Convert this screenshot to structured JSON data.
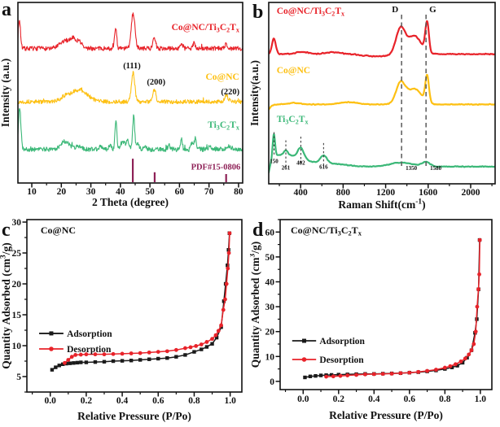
{
  "figure": {
    "background": "#ffffff",
    "colors": {
      "red": "#e8232a",
      "yellow": "#fdc013",
      "green": "#3cb878",
      "purple": "#8e2157",
      "ink": "#111111",
      "dash_gray": "#595959"
    }
  },
  "chart_data": [
    {
      "id": "a",
      "type": "line",
      "subtype": "xrd",
      "panel_label": "a",
      "xlabel": "2 Theta (degree)",
      "ylabel": "Intensity (a.u.)",
      "xlim": [
        5.3,
        81.4
      ],
      "xticks": [
        10,
        20,
        30,
        40,
        50,
        60,
        70,
        80
      ],
      "x_minor_step": 5,
      "yticks": [],
      "series": [
        {
          "name": "Ti_{3}C_{2}T_{x}",
          "color": "#3cb878",
          "baseline": 0.186,
          "noise": 0.013,
          "seed": 21,
          "peaks": [
            [
              5.9,
              0.23,
              0.6
            ],
            [
              21.3,
              0.046,
              2.0
            ],
            [
              25.8,
              0.02,
              1.5
            ],
            [
              33.5,
              0.015,
              1.0
            ],
            [
              36.5,
              0.025,
              0.6
            ],
            [
              38.5,
              0.165,
              0.45
            ],
            [
              40.8,
              0.045,
              0.9
            ],
            [
              42.5,
              0.05,
              0.7
            ],
            [
              44.5,
              0.185,
              0.5
            ],
            [
              46.0,
              0.03,
              0.6
            ],
            [
              48.3,
              0.02,
              0.7
            ],
            [
              56.5,
              0.02,
              0.6
            ],
            [
              60.7,
              0.058,
              0.4
            ],
            [
              64.3,
              0.04,
              0.5
            ],
            [
              65.4,
              0.065,
              0.5
            ],
            [
              70.2,
              0.015,
              0.5
            ],
            [
              77.0,
              0.02,
              0.8
            ]
          ],
          "label": {
            "text": "Ti_{3}C_{2}T_{x}",
            "fx": 0.985,
            "fy": 0.306,
            "anchor": "end"
          }
        },
        {
          "name": "Co@NC",
          "color": "#fdc013",
          "baseline": 0.45,
          "noise": 0.011,
          "seed": 13,
          "peaks": [
            [
              26.0,
              0.066,
              4.0
            ],
            [
              21.0,
              0.02,
              2.0
            ],
            [
              44.3,
              0.163,
              0.8
            ],
            [
              51.5,
              0.068,
              0.7
            ],
            [
              75.9,
              0.033,
              0.9
            ]
          ],
          "label": {
            "text": "Co@NC",
            "fx": 0.985,
            "fy": 0.572,
            "anchor": "end"
          }
        },
        {
          "name": "Co@NC/Ti_{3}C_{2}T_{x}",
          "color": "#e8232a",
          "baseline": 0.745,
          "noise": 0.012,
          "seed": 7,
          "peaks": [
            [
              5.8,
              0.155,
              0.55
            ],
            [
              21.5,
              0.042,
              2.6
            ],
            [
              24.2,
              0.045,
              1.5
            ],
            [
              26.3,
              0.032,
              1.1
            ],
            [
              38.4,
              0.118,
              0.5
            ],
            [
              44.3,
              0.195,
              0.9
            ],
            [
              51.5,
              0.06,
              0.65
            ],
            [
              60.8,
              0.03,
              0.5
            ],
            [
              65.0,
              0.032,
              0.55
            ],
            [
              75.8,
              0.024,
              0.6
            ]
          ],
          "label": {
            "text": "Co@NC/Ti_{3}C_{2}T_{x}",
            "fx": 0.985,
            "fy": 0.847,
            "anchor": "end"
          }
        }
      ],
      "reference": {
        "label": "PDF#15-0806",
        "color": "#8e2157",
        "bars": [
          [
            44.2,
            0.13
          ],
          [
            51.6,
            0.055
          ],
          [
            75.8,
            0.045
          ]
        ],
        "label_fx": 0.99,
        "label_fy": 0.075
      },
      "annotations": [
        {
          "text": "(111)",
          "x": 43.9,
          "fy": 0.635,
          "anchor": "middle"
        },
        {
          "text": "(200)",
          "x": 52.1,
          "fy": 0.545,
          "anchor": "middle"
        },
        {
          "text": "(220)",
          "x": 77.2,
          "fy": 0.49,
          "anchor": "middle"
        }
      ]
    },
    {
      "id": "b",
      "type": "line",
      "subtype": "raman",
      "panel_label": "b",
      "xlabel": "Raman Shift(cm^{-1})",
      "ylabel": "Intensity(a.u.)",
      "xlim": [
        100,
        2230
      ],
      "xticks": [
        400,
        800,
        1200,
        1600,
        2000
      ],
      "x_minor_step": 200,
      "yticks": [],
      "series": [
        {
          "name": "Ti_{3}C_{2}T_{x}",
          "color": "#3cb878",
          "baseline": 0.095,
          "noise": 0.0035,
          "seed": 9,
          "peaks": [
            [
              70,
              -0.13,
              45
            ],
            [
              230,
              0.065,
              280
            ],
            [
              148,
              0.125,
              16
            ],
            [
              261,
              0.025,
              26
            ],
            [
              402,
              0.06,
              40
            ],
            [
              616,
              0.045,
              45
            ],
            [
              730,
              0.012,
              160
            ],
            [
              1350,
              0.022,
              150
            ],
            [
              1580,
              0.025,
              50
            ]
          ],
          "label": {
            "text": "Ti_{3}C_{2}T_{x}",
            "fx": 0.035,
            "fy": 0.341,
            "anchor": "start"
          }
        },
        {
          "name": "Co@NC",
          "color": "#fdc013",
          "baseline": 0.438,
          "noise": 0.004,
          "seed": 5,
          "peaks": [
            [
              40,
              -0.08,
              60
            ],
            [
              850,
              0.012,
              120
            ],
            [
              340,
              0.008,
              80
            ],
            [
              1340,
              0.115,
              60
            ],
            [
              1470,
              0.085,
              95
            ],
            [
              1590,
              0.145,
              24
            ]
          ],
          "label": {
            "text": "Co@NC",
            "fx": 0.035,
            "fy": 0.61,
            "anchor": "start"
          }
        },
        {
          "name": "Co@NC/Ti_{3}C_{2}T_{x}",
          "color": "#e8232a",
          "baseline": 0.715,
          "noise": 0.0045,
          "seed": 3,
          "peaks": [
            [
              148,
              0.085,
              26
            ],
            [
              420,
              0.012,
              80
            ],
            [
              700,
              0.01,
              110
            ],
            [
              1100,
              -0.012,
              160
            ],
            [
              1340,
              0.14,
              60
            ],
            [
              1470,
              0.1,
              90
            ],
            [
              1590,
              0.165,
              24
            ]
          ],
          "label": {
            "text": "Co@NC/Ti_{3}C_{2}T_{x}",
            "fx": 0.035,
            "fy": 0.937,
            "anchor": "start"
          }
        }
      ],
      "dash_lines": [
        {
          "x": 1350,
          "band": "D",
          "value_label": "1350"
        },
        {
          "x": 1580,
          "band": "G",
          "value_label": "1580"
        }
      ],
      "marks": [
        {
          "x": 150,
          "label": "150",
          "dash": [
            0.285,
            0.155
          ],
          "label_fy": 0.115
        },
        {
          "x": 261,
          "label": "261",
          "dash": [
            0.24,
            0.09
          ],
          "label_fy": 0.078
        },
        {
          "x": 402,
          "label": "402",
          "dash": [
            0.26,
            0.105
          ],
          "label_fy": 0.105
        },
        {
          "x": 616,
          "label": "616",
          "dash": [
            0.225,
            0.095
          ],
          "label_fy": 0.082
        }
      ]
    },
    {
      "id": "c",
      "type": "scatter",
      "subtype": "isotherm",
      "panel_label": "c",
      "title": "Co@NC",
      "title_pos": {
        "fx": 0.064,
        "fy": 0.92
      },
      "xlabel": "Relative Pressure (P/Po)",
      "ylabel": "Quantity Adsorbed (cm^{3}/g)",
      "xlim": [
        -0.13,
        1.065
      ],
      "xticks": [
        0,
        0.2,
        0.4,
        0.6,
        0.8,
        1.0
      ],
      "xtick_labels": [
        "0.0",
        "0.2",
        "0.4",
        "0.6",
        "0.8",
        "1.0"
      ],
      "x_minor_step": 0.1,
      "ylim": [
        2.5,
        30.4
      ],
      "yticks": [
        5,
        10,
        15,
        20,
        25,
        30
      ],
      "y_minor_step": 2.5,
      "series": [
        {
          "name": "Adsorption",
          "color": "#1a1a1a",
          "marker": "square",
          "x": [
            0.01,
            0.03,
            0.05,
            0.07,
            0.09,
            0.11,
            0.13,
            0.15,
            0.17,
            0.2,
            0.25,
            0.3,
            0.35,
            0.4,
            0.45,
            0.5,
            0.55,
            0.6,
            0.65,
            0.7,
            0.75,
            0.8,
            0.84,
            0.87,
            0.9,
            0.925,
            0.95,
            0.965,
            0.975,
            0.985,
            0.991,
            0.996
          ],
          "y": [
            6.1,
            6.5,
            6.8,
            7.0,
            7.1,
            7.15,
            7.2,
            7.25,
            7.3,
            7.3,
            7.35,
            7.4,
            7.5,
            7.55,
            7.6,
            7.7,
            7.8,
            7.9,
            8.0,
            8.2,
            8.5,
            9.0,
            9.4,
            9.8,
            10.3,
            11.3,
            13.0,
            17.2,
            20.0,
            23.0,
            25.5,
            28.2
          ]
        },
        {
          "name": "Desorption",
          "color": "#e8232a",
          "marker": "circle",
          "x": [
            0.08,
            0.1,
            0.12,
            0.14,
            0.17,
            0.2,
            0.25,
            0.3,
            0.35,
            0.4,
            0.45,
            0.5,
            0.55,
            0.6,
            0.65,
            0.7,
            0.75,
            0.78,
            0.81,
            0.84,
            0.87,
            0.9,
            0.92,
            0.935,
            0.95,
            0.962,
            0.972,
            0.98,
            0.987,
            0.993,
            0.997
          ],
          "y": [
            7.2,
            7.7,
            8.2,
            8.5,
            8.55,
            8.6,
            8.6,
            8.6,
            8.65,
            8.7,
            8.75,
            8.8,
            8.9,
            9.0,
            9.1,
            9.3,
            9.6,
            9.75,
            9.95,
            10.2,
            10.6,
            11.1,
            11.7,
            12.4,
            13.3,
            15.8,
            17.5,
            20.0,
            22.5,
            25.0,
            28.2
          ]
        }
      ],
      "legend": {
        "fx_line": [
          0.057,
          0.17
        ],
        "text_fx": 0.186,
        "rows_fy": [
          0.34,
          0.25
        ]
      }
    },
    {
      "id": "d",
      "type": "scatter",
      "subtype": "isotherm",
      "panel_label": "d",
      "title": "Co@NC/Ti_{3}C_{2}T_{x}",
      "title_pos": {
        "fx": 0.05,
        "fy": 0.919
      },
      "xlabel": "Relative Pressure (P/Po)",
      "ylabel": "Quantity Adsorbed (cm^{3}/g)",
      "xlim": [
        -0.13,
        1.065
      ],
      "xticks": [
        0,
        0.2,
        0.4,
        0.6,
        0.8,
        1.0
      ],
      "xtick_labels": [
        "0.0",
        "0.2",
        "0.4",
        "0.6",
        "0.8",
        "1.0"
      ],
      "x_minor_step": 0.1,
      "ylim": [
        -3.3,
        65
      ],
      "yticks": [
        0,
        10,
        20,
        30,
        40,
        50,
        60
      ],
      "y_minor_step": 5,
      "series": [
        {
          "name": "Adsorption",
          "color": "#1a1a1a",
          "marker": "square",
          "x": [
            0.01,
            0.04,
            0.07,
            0.1,
            0.13,
            0.16,
            0.2,
            0.25,
            0.3,
            0.35,
            0.4,
            0.45,
            0.5,
            0.55,
            0.6,
            0.65,
            0.7,
            0.75,
            0.8,
            0.84,
            0.87,
            0.9,
            0.925,
            0.95,
            0.97,
            0.98,
            0.99,
            0.996
          ],
          "y": [
            1.6,
            2.0,
            2.2,
            2.4,
            2.5,
            2.6,
            2.7,
            2.8,
            2.9,
            3.0,
            3.0,
            3.1,
            3.2,
            3.3,
            3.5,
            3.7,
            4.0,
            4.4,
            5.0,
            5.6,
            6.3,
            7.5,
            9.5,
            12.5,
            19.5,
            25.0,
            37.0,
            56.8
          ]
        },
        {
          "name": "Desorption",
          "color": "#e8232a",
          "marker": "circle",
          "x": [
            0.13,
            0.17,
            0.21,
            0.25,
            0.3,
            0.35,
            0.4,
            0.45,
            0.5,
            0.55,
            0.6,
            0.65,
            0.7,
            0.75,
            0.8,
            0.83,
            0.86,
            0.89,
            0.915,
            0.935,
            0.95,
            0.963,
            0.974,
            0.982,
            0.989,
            0.994,
            0.997
          ],
          "y": [
            1.9,
            2.0,
            2.2,
            2.4,
            2.6,
            2.8,
            2.9,
            3.0,
            3.1,
            3.3,
            3.5,
            3.8,
            4.2,
            4.7,
            5.5,
            6.1,
            6.9,
            8.0,
            9.2,
            10.8,
            12.5,
            15.0,
            20.0,
            30.0,
            37.0,
            43.0,
            56.8
          ]
        }
      ],
      "legend": {
        "fx_line": [
          0.057,
          0.17
        ],
        "text_fx": 0.186,
        "rows_fy": [
          0.287,
          0.177
        ]
      }
    }
  ]
}
